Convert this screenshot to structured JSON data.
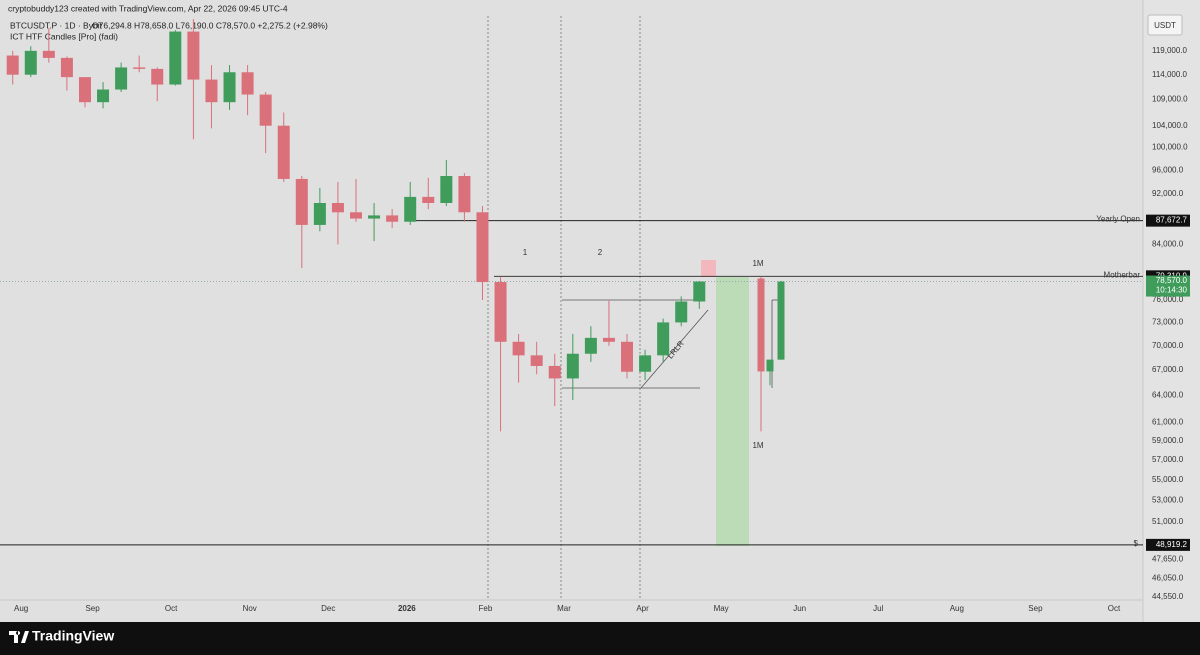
{
  "header": {
    "byline": "cryptobuddy123 created with TradingView.com, Apr 22, 2026 09:45 UTC-4",
    "symbol": "BTCUSDT.P · 1D · Bybit",
    "ohlc": "O76,294.8 H78,658.0 L76,190.0 C78,570.0 +2,275.2 (+2.98%)",
    "indicator": "ICT HTF Candles [Pro] (fadi)"
  },
  "chart_data": {
    "type": "candlestick",
    "currency": "USDT",
    "log_scale": true,
    "ylim": [
      44300,
      126700
    ],
    "yticks": [
      {
        "value": 119000,
        "label": "119,000.0"
      },
      {
        "value": 114000,
        "label": "114,000.0"
      },
      {
        "value": 109000,
        "label": "109,000.0"
      },
      {
        "value": 104000,
        "label": "104,000.0"
      },
      {
        "value": 100000,
        "label": "100,000.0"
      },
      {
        "value": 96000,
        "label": "96,000.0"
      },
      {
        "value": 92000,
        "label": "92,000.0"
      },
      {
        "value": 84000,
        "label": "84,000.0"
      },
      {
        "value": 76000,
        "label": "76,000.0"
      },
      {
        "value": 73000,
        "label": "73,000.0"
      },
      {
        "value": 70000,
        "label": "70,000.0"
      },
      {
        "value": 67000,
        "label": "67,000.0"
      },
      {
        "value": 64000,
        "label": "64,000.0"
      },
      {
        "value": 61000,
        "label": "61,000.0"
      },
      {
        "value": 59000,
        "label": "59,000.0"
      },
      {
        "value": 57000,
        "label": "57,000.0"
      },
      {
        "value": 55000,
        "label": "55,000.0"
      },
      {
        "value": 53000,
        "label": "53,000.0"
      },
      {
        "value": 51000,
        "label": "51,000.0"
      },
      {
        "value": 47650,
        "label": "47,650.0"
      },
      {
        "value": 46050,
        "label": "46,050.0"
      },
      {
        "value": 44550,
        "label": "44,550.0"
      }
    ],
    "x_axis_labels": [
      "Aug",
      "Sep",
      "Oct",
      "Nov",
      "Dec",
      "2026",
      "Feb",
      "Mar",
      "Apr",
      "May",
      "Jun",
      "Jul",
      "Aug",
      "Sep",
      "Oct"
    ],
    "up_color": "#3f9c5b",
    "down_color": "#d9707a",
    "open": [
      118000,
      114000,
      119000,
      117500,
      113500,
      108500,
      111000,
      115500,
      115200,
      112000,
      123200,
      113000,
      108500,
      114500,
      110000,
      104000,
      94500,
      87000,
      90500,
      89000,
      88000,
      88500,
      87500,
      91500,
      90500,
      95000,
      89000,
      78500,
      70500,
      68800,
      67500,
      66000,
      69000,
      71000,
      70500,
      66800,
      68800,
      73000,
      75800
    ],
    "high": [
      119000,
      120000,
      124000,
      117800,
      113500,
      112500,
      116500,
      118000,
      115500,
      123500,
      126000,
      116000,
      116000,
      116000,
      110500,
      106500,
      95000,
      93000,
      94000,
      94500,
      90500,
      89500,
      94000,
      94700,
      97800,
      95500,
      90000,
      79300,
      71500,
      70500,
      69000,
      71500,
      72500,
      75900,
      71500,
      69500,
      73500,
      76500,
      78658
    ],
    "low": [
      112000,
      113500,
      116500,
      110800,
      107500,
      107300,
      110500,
      114500,
      108700,
      111800,
      101500,
      103500,
      107000,
      106000,
      99000,
      94000,
      80500,
      86000,
      84000,
      87500,
      84500,
      86500,
      87000,
      89500,
      90000,
      87500,
      76000,
      60000,
      65500,
      66500,
      62800,
      63500,
      68000,
      70000,
      66000,
      65800,
      68000,
      72500,
      74800
    ],
    "close": [
      114000,
      119000,
      117500,
      113500,
      108500,
      111000,
      115500,
      115200,
      112000,
      123200,
      113000,
      108500,
      114500,
      110000,
      104000,
      94500,
      87000,
      90500,
      89000,
      88000,
      88500,
      87500,
      91500,
      90500,
      95000,
      89000,
      78500,
      70500,
      68800,
      67500,
      66000,
      69000,
      71000,
      70500,
      66800,
      68800,
      73000,
      75800,
      78570
    ],
    "htf_candles": {
      "top_label": "1M",
      "bottom_label": "1M",
      "open": [
        79000,
        66840,
        68270
      ],
      "high": [
        79300,
        68270,
        78658
      ],
      "low": [
        60000,
        65200,
        68270
      ],
      "close": [
        66840,
        68270,
        78570
      ]
    },
    "levels": [
      {
        "name": "Yearly Open",
        "value": 87672.7,
        "label": "87,672.7"
      },
      {
        "name": "Motherbar",
        "value": 79310.9,
        "label": "79,310.9"
      },
      {
        "name": "$",
        "value": 48919.2,
        "label": "48,919.2"
      }
    ],
    "last_price": {
      "value": 78570,
      "label": "78,570.0",
      "countdown": "10:14:30"
    },
    "annotations": [
      "1",
      "2",
      "LRLR"
    ]
  },
  "footer": {
    "brand": "TradingView"
  }
}
